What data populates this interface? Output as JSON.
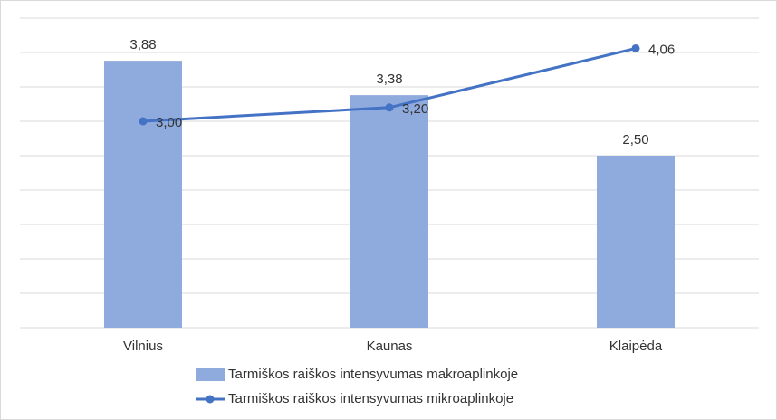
{
  "chart_data": {
    "type": "combo",
    "categories": [
      "Vilnius",
      "Kaunas",
      "Klaipėda"
    ],
    "series": [
      {
        "name": "Tarmiškos raiškos intensyvumas makroaplinkoje",
        "type": "bar",
        "color": "#8faadc",
        "values": [
          3.88,
          3.38,
          2.5
        ],
        "value_labels": [
          "3,88",
          "3,38",
          "2,50"
        ]
      },
      {
        "name": "Tarmiškos raiškos intensyvumas mikroaplinkoje",
        "type": "line",
        "color": "#4472c4",
        "values": [
          3.0,
          3.2,
          4.06
        ],
        "value_labels": [
          "3,00",
          "3,20",
          "4,06"
        ]
      }
    ],
    "ylim": [
      0,
      4.5
    ],
    "yticks": [
      0,
      0.5,
      1,
      1.5,
      2,
      2.5,
      3,
      3.5,
      4,
      4.5
    ],
    "grid": true,
    "legend": "bottom"
  }
}
